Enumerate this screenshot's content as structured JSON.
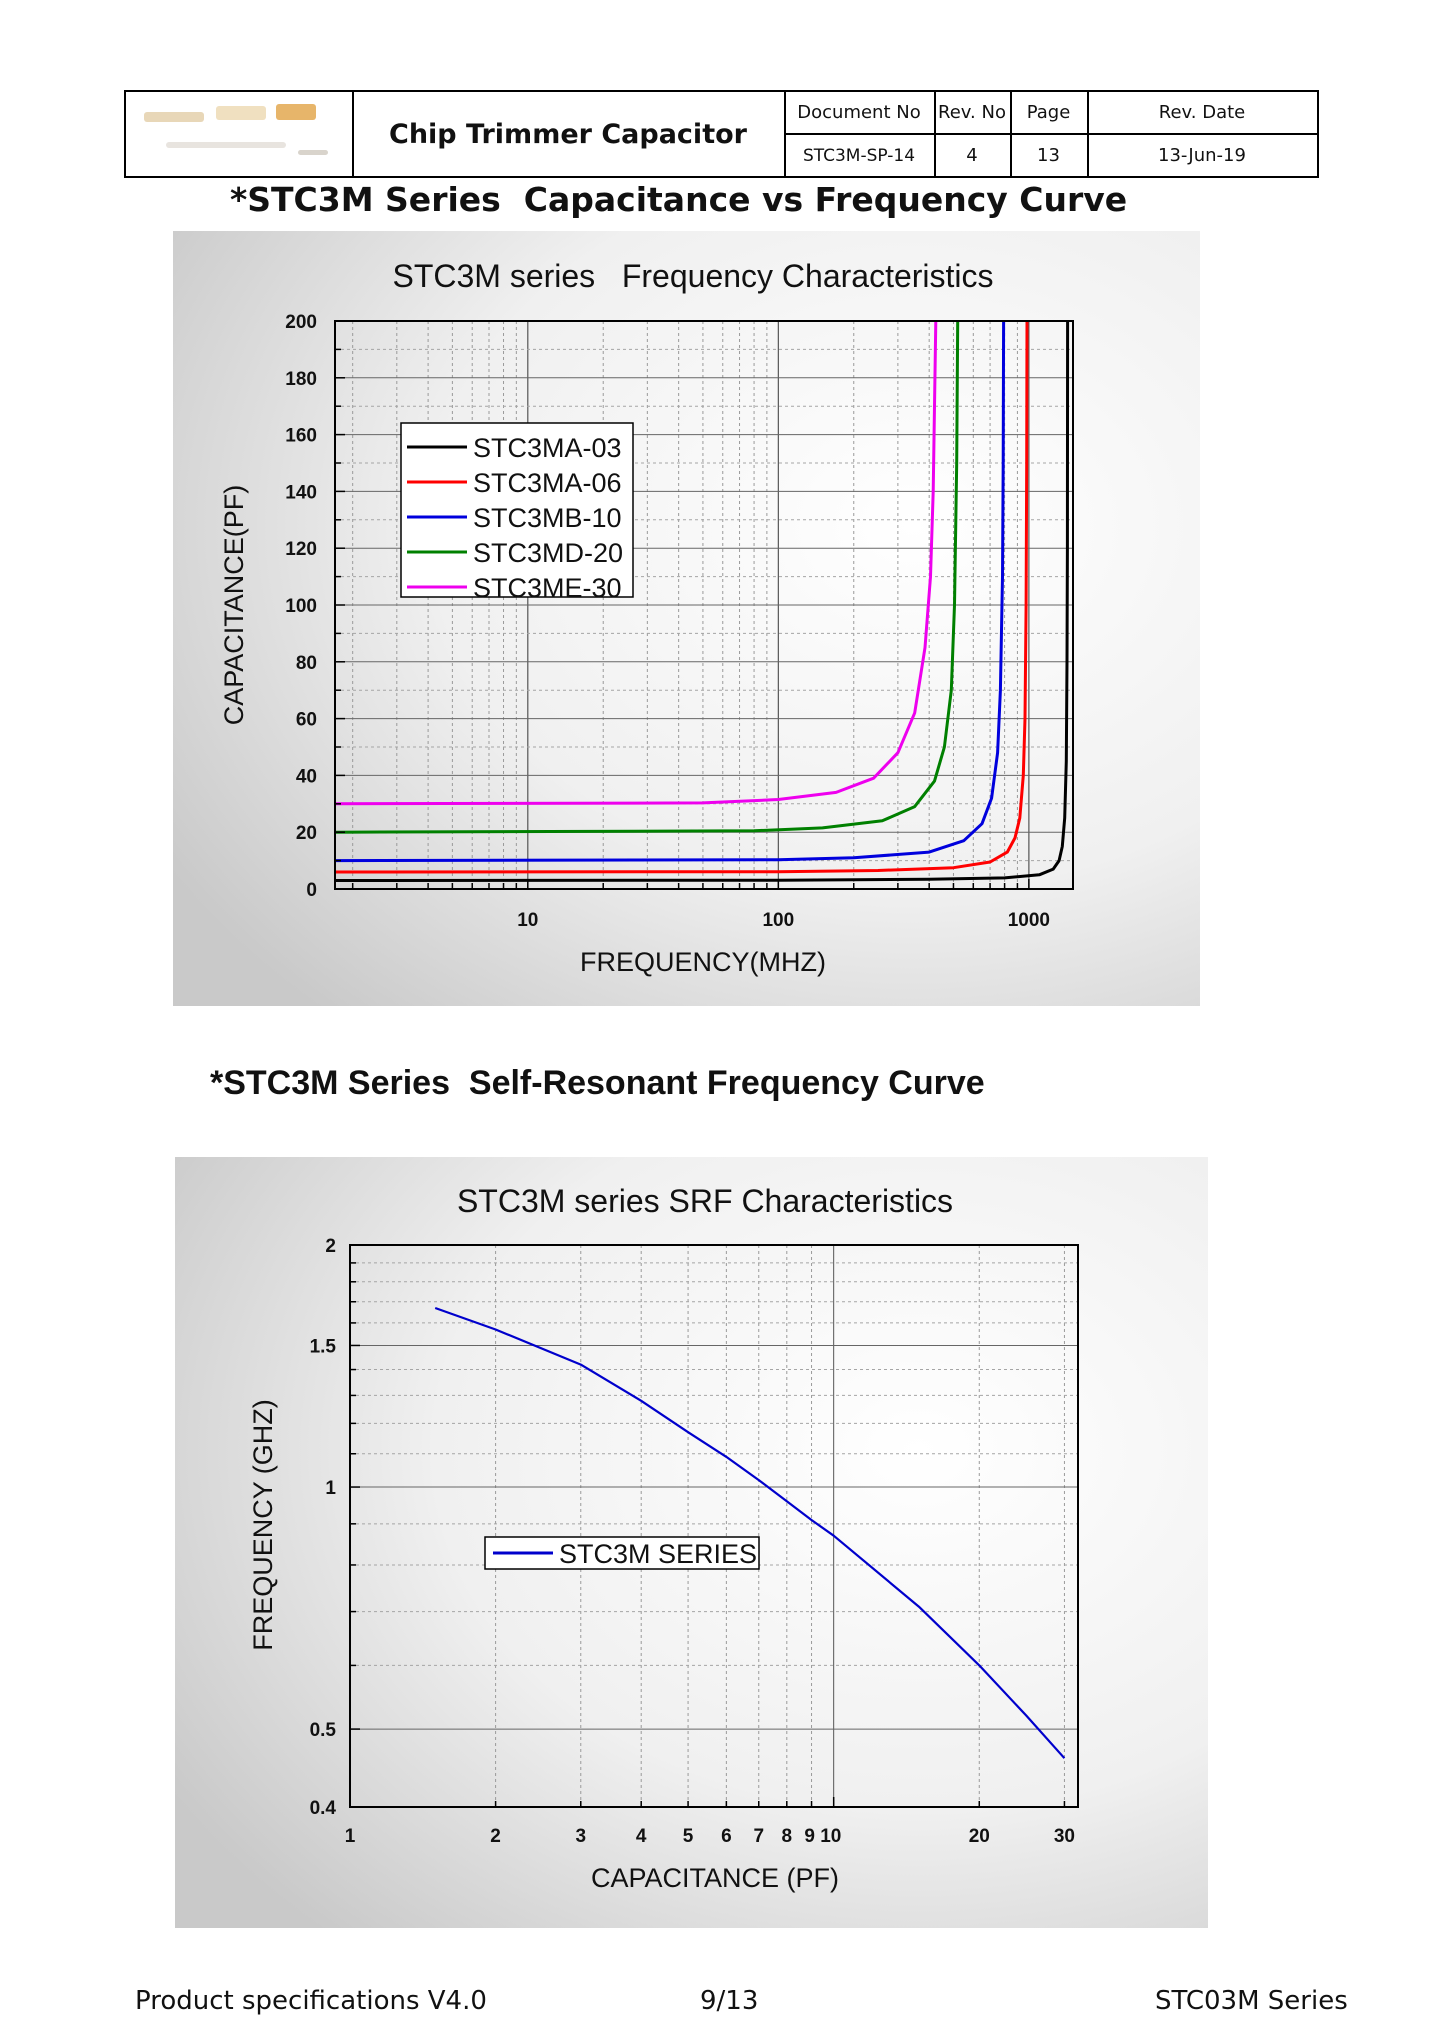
{
  "header": {
    "doc_title": "Chip Trimmer Capacitor",
    "document_no_label": "Document No",
    "document_no": "STC3M-SP-14",
    "rev_no_label": "Rev. No",
    "rev_no": "4",
    "page_label": "Page",
    "page": "13",
    "rev_date_label": "Rev. Date",
    "rev_date": "13-Jun-19"
  },
  "section1_title": "*STC3M Series  Capacitance vs Frequency Curve",
  "section2_title": "*STC3M Series  Self-Resonant Frequency Curve",
  "footer": {
    "left": "Product specifications V4.0",
    "center": "9/13",
    "right": "STC03M Series"
  },
  "chart_data": [
    {
      "type": "line",
      "title": "STC3M series   Frequency Characteristics",
      "xlabel": "FREQUENCY(MHZ)",
      "ylabel": "CAPACITANCE(PF)",
      "x_scale": "log",
      "xlim": [
        1.7,
        1500
      ],
      "ylim": [
        0,
        200
      ],
      "x_tick_labels": [
        "10",
        "100",
        "1000"
      ],
      "y_tick_labels": [
        "0",
        "20",
        "40",
        "60",
        "80",
        "100",
        "120",
        "140",
        "160",
        "180",
        "200"
      ],
      "grid": true,
      "legend_position": "upper-left",
      "series": [
        {
          "name": "STC3MA-03",
          "color": "#000000",
          "points": [
            [
              1.7,
              3
            ],
            [
              100,
              3.1
            ],
            [
              400,
              3.4
            ],
            [
              800,
              3.9
            ],
            [
              1100,
              5
            ],
            [
              1250,
              7
            ],
            [
              1320,
              10
            ],
            [
              1360,
              15
            ],
            [
              1390,
              25
            ],
            [
              1410,
              45
            ],
            [
              1420,
              80
            ],
            [
              1425,
              120
            ],
            [
              1428,
              200
            ]
          ]
        },
        {
          "name": "STC3MA-06",
          "color": "#ff0000",
          "points": [
            [
              1.7,
              6
            ],
            [
              100,
              6.1
            ],
            [
              250,
              6.5
            ],
            [
              500,
              7.5
            ],
            [
              700,
              9.5
            ],
            [
              820,
              13
            ],
            [
              880,
              18
            ],
            [
              920,
              25
            ],
            [
              950,
              40
            ],
            [
              965,
              60
            ],
            [
              975,
              100
            ],
            [
              980,
              150
            ],
            [
              983,
              200
            ]
          ]
        },
        {
          "name": "STC3MB-10",
          "color": "#0000dd",
          "points": [
            [
              1.7,
              10
            ],
            [
              100,
              10.3
            ],
            [
              200,
              11
            ],
            [
              400,
              13
            ],
            [
              550,
              17
            ],
            [
              650,
              23
            ],
            [
              710,
              32
            ],
            [
              750,
              48
            ],
            [
              770,
              70
            ],
            [
              785,
              110
            ],
            [
              790,
              150
            ],
            [
              793,
              200
            ]
          ]
        },
        {
          "name": "STC3MD-20",
          "color": "#008000",
          "points": [
            [
              1.7,
              20
            ],
            [
              80,
              20.5
            ],
            [
              150,
              21.5
            ],
            [
              260,
              24
            ],
            [
              350,
              29
            ],
            [
              420,
              38
            ],
            [
              460,
              50
            ],
            [
              490,
              70
            ],
            [
              505,
              100
            ],
            [
              515,
              150
            ],
            [
              520,
              200
            ]
          ]
        },
        {
          "name": "STC3ME-30",
          "color": "#ee00ee",
          "points": [
            [
              1.7,
              30
            ],
            [
              50,
              30.3
            ],
            [
              100,
              31.5
            ],
            [
              170,
              34
            ],
            [
              240,
              39
            ],
            [
              300,
              48
            ],
            [
              350,
              62
            ],
            [
              385,
              85
            ],
            [
              405,
              110
            ],
            [
              415,
              140
            ],
            [
              425,
              200
            ]
          ]
        }
      ]
    },
    {
      "type": "line",
      "title": "STC3M series SRF Characteristics",
      "xlabel": "CAPACITANCE (PF)",
      "ylabel": "FREQUENCY (GHZ)",
      "x_scale": "log",
      "y_scale": "log",
      "xlim": [
        1,
        32
      ],
      "ylim": [
        0.4,
        2
      ],
      "x_tick_labels": [
        "1",
        "2",
        "3",
        "4",
        "5",
        "6",
        "7",
        "8",
        "9 10",
        "20",
        "30"
      ],
      "y_tick_labels": [
        "0.4",
        "0.5",
        "1",
        "1.5",
        "2"
      ],
      "grid": true,
      "legend_position": "center-left",
      "series": [
        {
          "name": "STC3M SERIES",
          "color": "#0000cc",
          "points": [
            [
              1.5,
              1.67
            ],
            [
              2,
              1.57
            ],
            [
              3,
              1.42
            ],
            [
              4,
              1.28
            ],
            [
              5,
              1.17
            ],
            [
              6,
              1.09
            ],
            [
              7,
              1.02
            ],
            [
              8,
              0.96
            ],
            [
              9,
              0.91
            ],
            [
              10,
              0.87
            ],
            [
              15,
              0.71
            ],
            [
              20,
              0.6
            ],
            [
              25,
              0.52
            ],
            [
              30,
              0.46
            ]
          ]
        }
      ]
    }
  ]
}
